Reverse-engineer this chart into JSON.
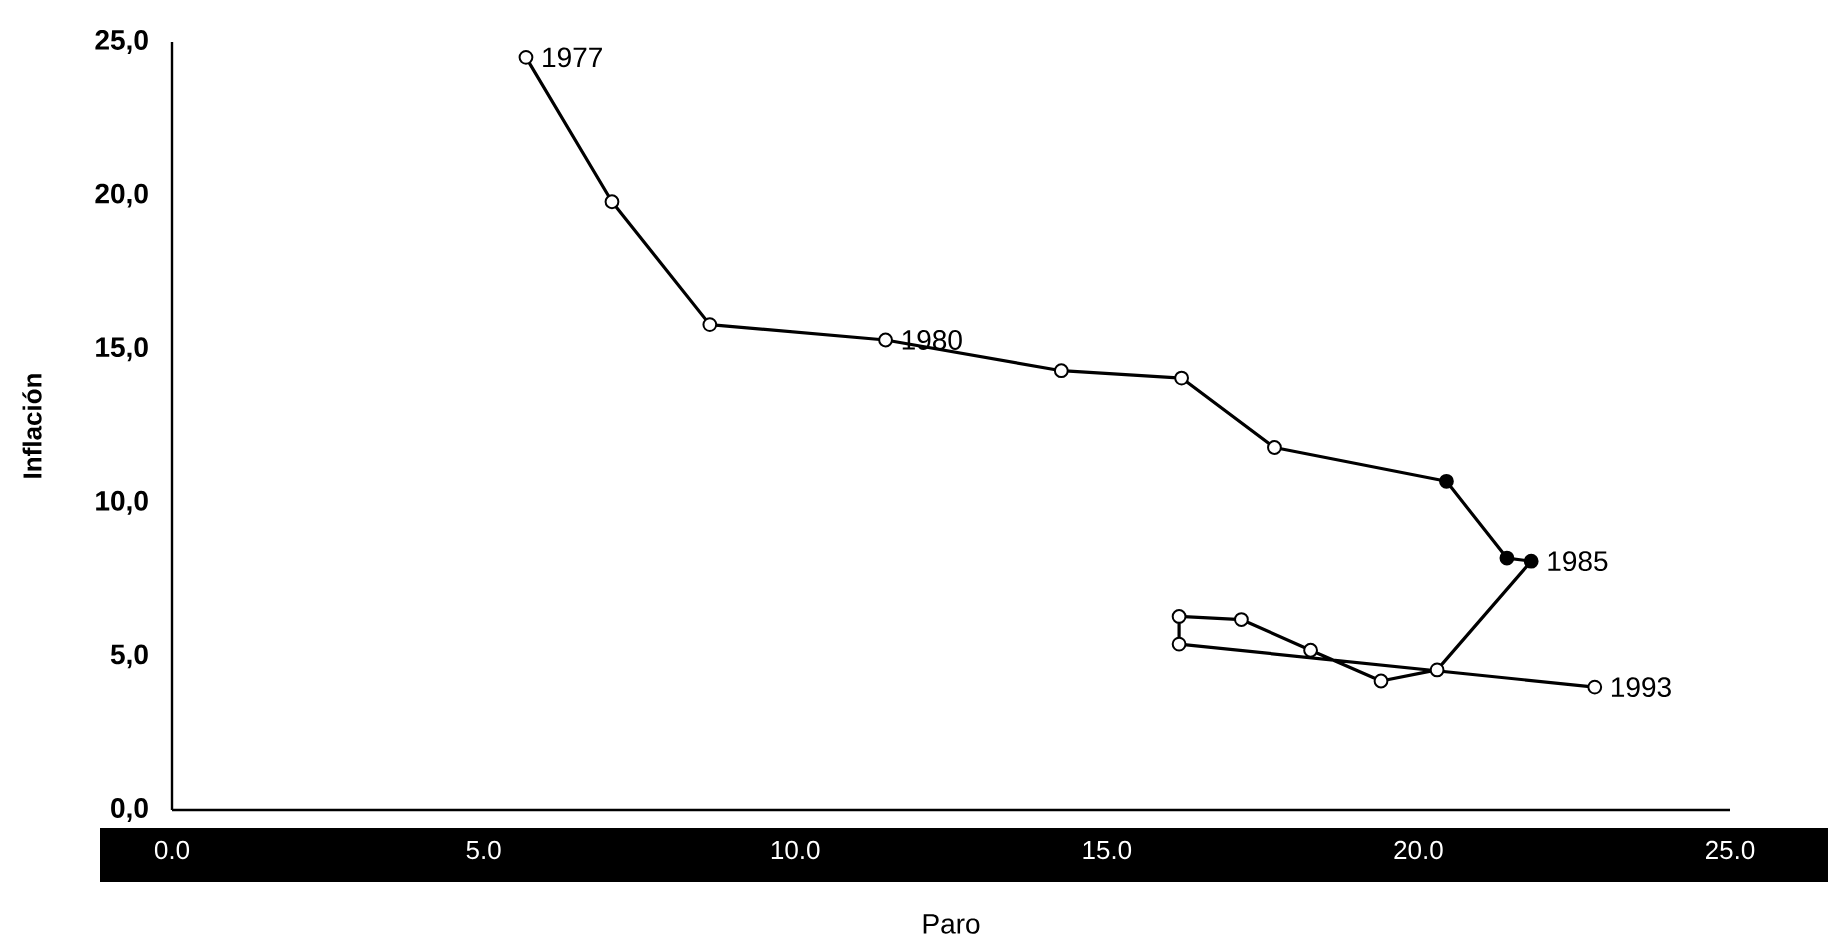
{
  "chart_data": {
    "type": "line",
    "xlabel": "Paro",
    "ylabel": "Inflación",
    "x": [
      5.68,
      7.06,
      8.63,
      11.45,
      14.27,
      16.2,
      17.69,
      20.45,
      21.42,
      21.81,
      20.3,
      19.4,
      18.27,
      17.16,
      16.16,
      16.16,
      22.83
    ],
    "series": [
      {
        "color": "#000000",
        "values": [
          24.5,
          19.8,
          15.8,
          15.3,
          14.3,
          14.06,
          11.8,
          10.7,
          8.2,
          8.1,
          4.56,
          4.2,
          5.2,
          6.2,
          6.3,
          5.4,
          4.0
        ],
        "colors": [
          "#ffffff",
          "#ffffff",
          "#ffffff",
          "#ffffff",
          "#ffffff",
          "#ffffff",
          "#ffffff",
          "#000000",
          "#000000",
          "#000000",
          "#ffffff",
          "#ffffff",
          "#ffffff",
          "#ffffff",
          "#ffffff",
          "#ffffff",
          "#ffffff"
        ]
      }
    ],
    "marker": "circle",
    "line_style": "solid",
    "xlim": [
      0,
      25
    ],
    "ylim": [
      0,
      25
    ],
    "xticks": [
      {
        "value": 0,
        "label": "0.0"
      },
      {
        "value": 5,
        "label": "5.0"
      },
      {
        "value": 10,
        "label": "10.0"
      },
      {
        "value": 15,
        "label": "15.0"
      },
      {
        "value": 20,
        "label": "20.0"
      },
      {
        "value": 25,
        "label": "25.0"
      }
    ],
    "yticks": [
      {
        "value": 0,
        "label": "0,0"
      },
      {
        "value": 5,
        "label": "5,0"
      },
      {
        "value": 10,
        "label": "10,0"
      },
      {
        "value": 15,
        "label": "15,0"
      },
      {
        "value": 20,
        "label": "20,0"
      },
      {
        "value": 25,
        "label": "25,0"
      }
    ],
    "annotations": [
      {
        "text": "1977",
        "x": 5.68,
        "y": 24.5
      },
      {
        "text": "1980",
        "x": 11.45,
        "y": 15.3
      },
      {
        "text": "1985",
        "x": 21.81,
        "y": 8.1
      },
      {
        "text": "1993",
        "x": 22.83,
        "y": 4.0
      }
    ]
  }
}
